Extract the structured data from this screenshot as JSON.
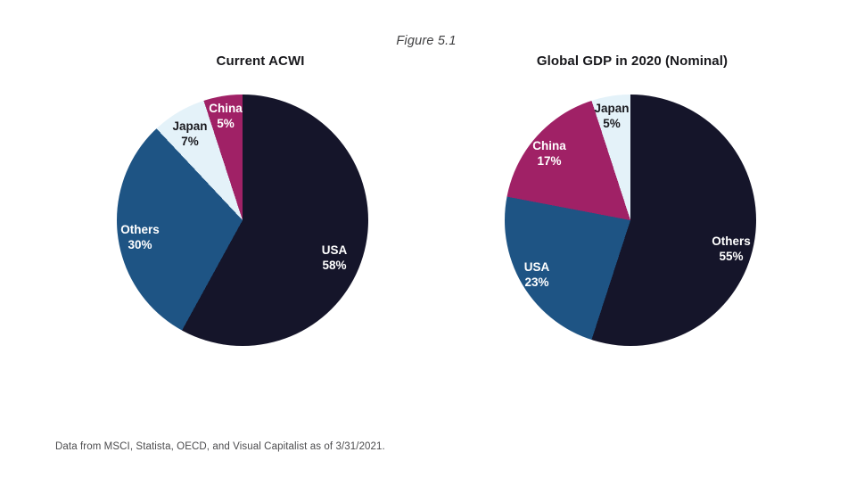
{
  "figure": {
    "caption": "Figure 5.1",
    "source_note": "Data from MSCI, Statista, OECD, and Visual Capitalist as of 3/31/2021."
  },
  "colors": {
    "navy_dark": "#15152a",
    "blue": "#1e5484",
    "magenta": "#a02166",
    "light_blue": "#e4f2f9",
    "label_light": "#ffffff",
    "label_dark": "#1b1b20"
  },
  "chart_data": [
    {
      "type": "pie",
      "title": "Current ACWI",
      "unit": "%",
      "start_angle_deg": 0,
      "direction": "clockwise",
      "slices": [
        {
          "label": "USA",
          "value": 58,
          "display": "58%",
          "color": "#15152a",
          "label_style": "light"
        },
        {
          "label": "Others",
          "value": 30,
          "display": "30%",
          "color": "#1e5484",
          "label_style": "light"
        },
        {
          "label": "Japan",
          "value": 7,
          "display": "7%",
          "color": "#e4f2f9",
          "label_style": "dark"
        },
        {
          "label": "China",
          "value": 5,
          "display": "5%",
          "color": "#a02166",
          "label_style": "light"
        }
      ]
    },
    {
      "type": "pie",
      "title": "Global GDP in 2020 (Nominal)",
      "unit": "%",
      "start_angle_deg": 0,
      "direction": "clockwise",
      "slices": [
        {
          "label": "Others",
          "value": 55,
          "display": "55%",
          "color": "#15152a",
          "label_style": "light"
        },
        {
          "label": "USA",
          "value": 23,
          "display": "23%",
          "color": "#1e5484",
          "label_style": "light"
        },
        {
          "label": "China",
          "value": 17,
          "display": "17%",
          "color": "#a02166",
          "label_style": "light"
        },
        {
          "label": "Japan",
          "value": 5,
          "display": "5%",
          "color": "#e4f2f9",
          "label_style": "dark"
        }
      ]
    }
  ]
}
